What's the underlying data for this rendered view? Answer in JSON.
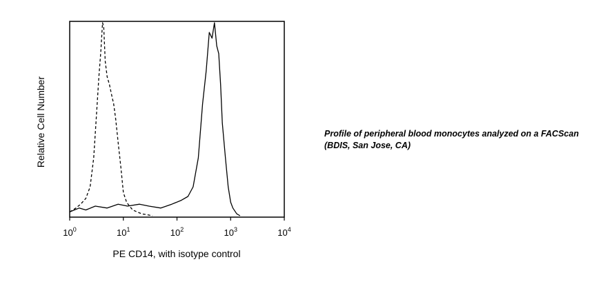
{
  "caption": "Profile of peripheral blood monocytes analyzed on a FACScan (BDIS, San Jose, CA)",
  "chart_data": {
    "type": "line",
    "title": "",
    "xlabel": "PE CD14, with isotype control",
    "ylabel": "Relative Cell Number",
    "x_scale": "log",
    "xlim": [
      1,
      10000
    ],
    "ylim": [
      0,
      100
    ],
    "x_ticks": [
      {
        "base": "10",
        "exp": "0",
        "value": 1
      },
      {
        "base": "10",
        "exp": "1",
        "value": 10
      },
      {
        "base": "10",
        "exp": "2",
        "value": 100
      },
      {
        "base": "10",
        "exp": "3",
        "value": 1000
      },
      {
        "base": "10",
        "exp": "4",
        "value": 10000
      }
    ],
    "grid": false,
    "series": [
      {
        "style": "dashed",
        "color": "#000000",
        "x": [
          1,
          1.3,
          1.6,
          2.0,
          2.4,
          2.8,
          3.2,
          3.5,
          3.8,
          4.1,
          4.3,
          4.6,
          5.0,
          5.5,
          6.0,
          6.6,
          7.2,
          8.0,
          9.0,
          10,
          11.5,
          13,
          15,
          18,
          22,
          28,
          35
        ],
        "y": [
          2,
          4,
          6,
          9,
          15,
          30,
          55,
          72,
          85,
          100,
          98,
          80,
          72,
          68,
          63,
          58,
          50,
          38,
          25,
          12,
          7,
          5,
          3,
          2,
          1,
          0.5,
          0
        ]
      },
      {
        "style": "solid",
        "color": "#000000",
        "x": [
          1,
          1.5,
          2,
          3,
          5,
          8,
          12,
          20,
          30,
          50,
          80,
          120,
          160,
          200,
          250,
          300,
          350,
          400,
          450,
          500,
          550,
          600,
          650,
          700,
          800,
          900,
          1000,
          1100,
          1300,
          1500
        ],
        "y": [
          2,
          4,
          3,
          5,
          4,
          6,
          5,
          6,
          5,
          4,
          6,
          8,
          10,
          15,
          30,
          58,
          75,
          95,
          92,
          100,
          88,
          84,
          68,
          48,
          30,
          15,
          7,
          4,
          1,
          0
        ]
      }
    ]
  }
}
